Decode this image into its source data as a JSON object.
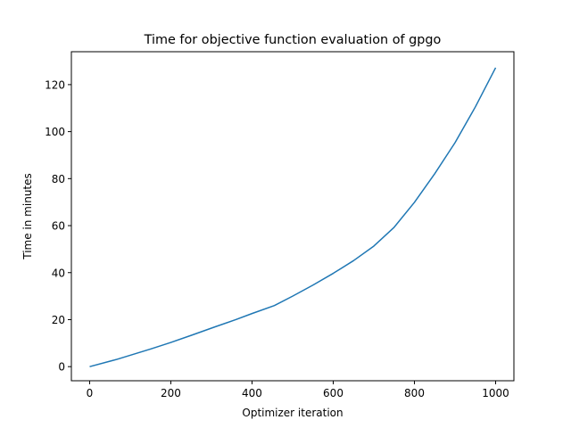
{
  "chart_data": {
    "type": "line",
    "title": "Time for objective function evaluation of gpgo",
    "xlabel": "Optimizer iteration",
    "ylabel": "Time in minutes",
    "xlim": [
      -45,
      1045
    ],
    "ylim": [
      -6,
      134
    ],
    "xticks": [
      0,
      200,
      400,
      600,
      800,
      1000
    ],
    "yticks": [
      0,
      20,
      40,
      60,
      80,
      100,
      120
    ],
    "grid": false,
    "series": [
      {
        "color": "#1f77b4",
        "x": [
          0,
          65,
          150,
          200,
          250,
          310,
          360,
          400,
          455,
          500,
          550,
          600,
          650,
          700,
          750,
          800,
          850,
          900,
          950,
          1000
        ],
        "y": [
          0,
          3,
          7.5,
          10.3,
          13.3,
          17,
          20,
          22.6,
          26,
          30,
          34.7,
          39.7,
          45.1,
          51.3,
          59.3,
          69.9,
          82.1,
          95.3,
          110.5,
          127.2
        ]
      }
    ]
  }
}
